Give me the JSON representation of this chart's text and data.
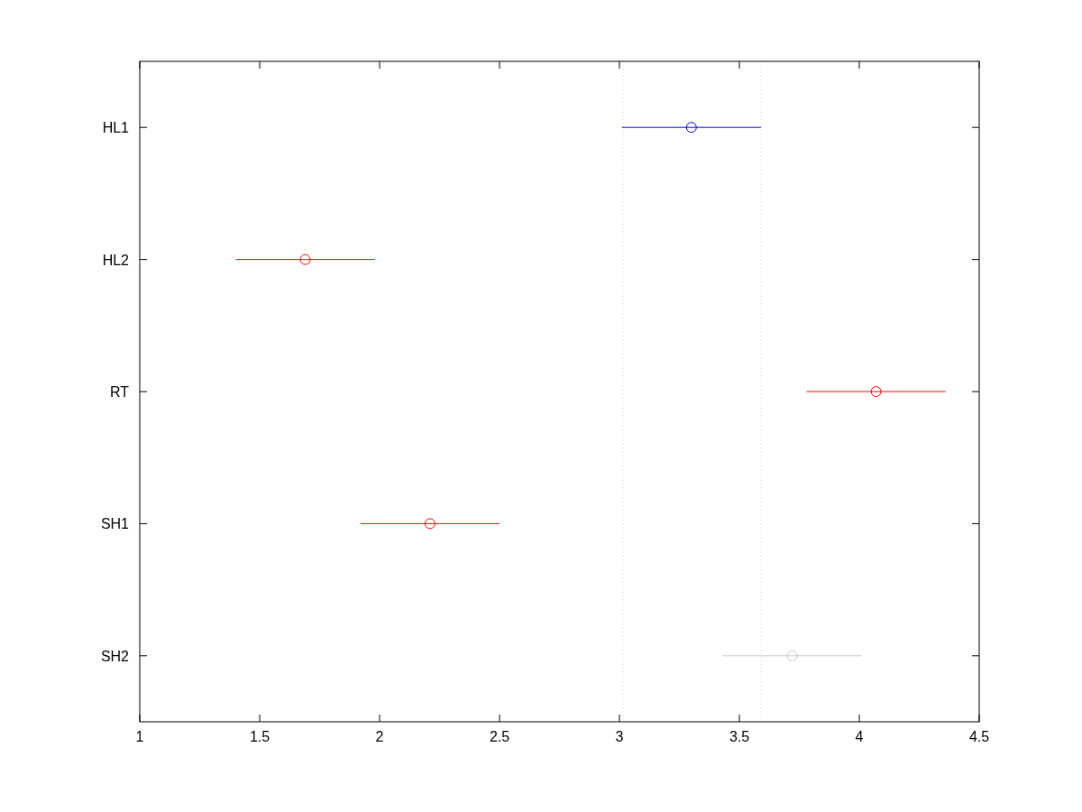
{
  "chart_data": {
    "type": "scatter",
    "orientation": "horizontal",
    "marker": "circle",
    "grid": false,
    "categories": [
      "HL1",
      "HL2",
      "RT",
      "SH1",
      "SH2"
    ],
    "values": [
      3.3,
      1.69,
      4.07,
      2.21,
      3.72
    ],
    "errors": [
      0.29,
      0.29,
      0.29,
      0.29,
      0.29
    ],
    "colors": [
      "#0000ff",
      "#ff0000",
      "#ff0000",
      "#ff0000",
      "#c8c8c8"
    ],
    "xlim": [
      1,
      4.5
    ],
    "xticks": [
      1,
      1.5,
      2,
      2.5,
      3,
      3.5,
      4,
      4.5
    ],
    "ref_lines": [
      {
        "axis": "x",
        "value": 3.015,
        "color": "#d0d0d0",
        "line_style": "dotted"
      },
      {
        "axis": "x",
        "value": 3.59,
        "color": "#d0d0d0",
        "line_style": "dotted"
      }
    ]
  }
}
